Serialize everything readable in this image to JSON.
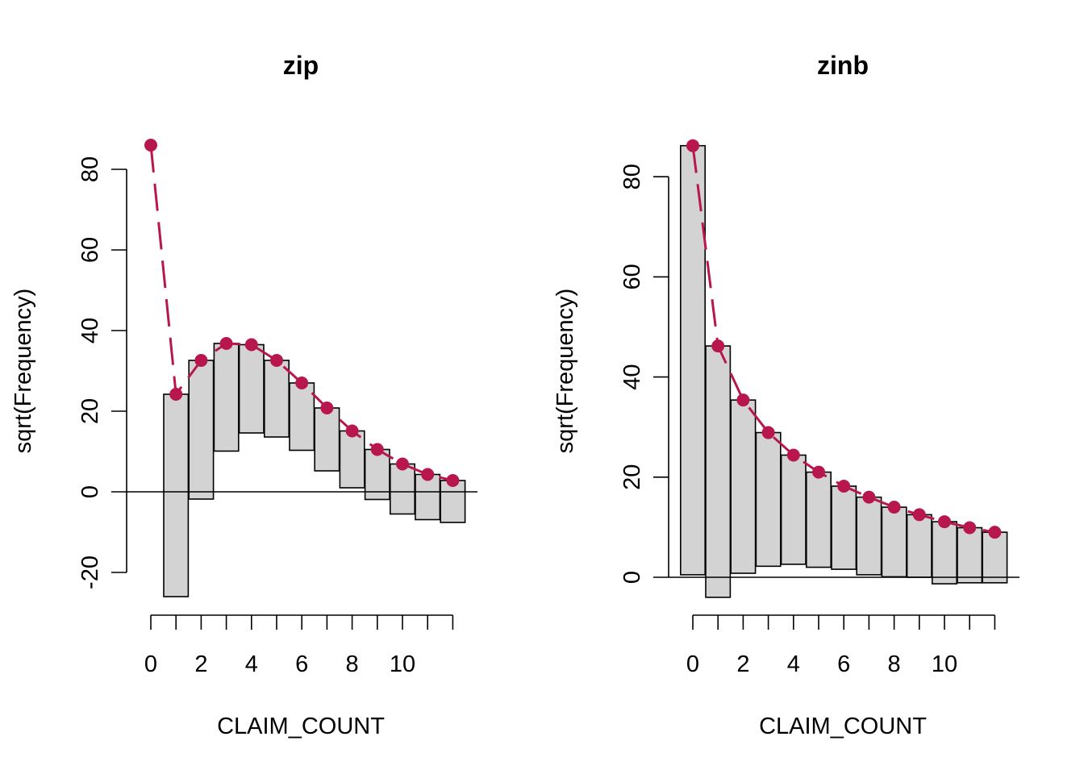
{
  "chart_data": [
    {
      "type": "bar",
      "subtype": "hanging-rootogram",
      "title": "zip",
      "xlabel": "CLAIM_COUNT",
      "ylabel": "sqrt(Frequency)",
      "x": [
        0,
        1,
        2,
        3,
        4,
        5,
        6,
        7,
        8,
        9,
        10,
        11,
        12
      ],
      "x_ticks": [
        0,
        2,
        4,
        6,
        8,
        10
      ],
      "y_ticks": [
        -20,
        0,
        20,
        40,
        60,
        80
      ],
      "ylim": [
        -30,
        86
      ],
      "series": [
        {
          "values": [
            86.0,
            24.2,
            32.6,
            36.8,
            36.5,
            32.6,
            27.0,
            20.8,
            15.1,
            10.5,
            6.9,
            4.3,
            2.8
          ]
        },
        {
          "values": [
            86.0,
            -26.0,
            -1.8,
            10.1,
            14.6,
            13.6,
            10.3,
            5.2,
            1.0,
            -1.9,
            -5.5,
            -6.9,
            -7.6
          ]
        }
      ],
      "line_color": "#b8174e",
      "bar_color": "#d3d3d3",
      "grid": false
    },
    {
      "type": "bar",
      "subtype": "hanging-rootogram",
      "title": "zinb",
      "xlabel": "CLAIM_COUNT",
      "ylabel": "sqrt(Frequency)",
      "x": [
        0,
        1,
        2,
        3,
        4,
        5,
        6,
        7,
        8,
        9,
        10,
        11,
        12
      ],
      "x_ticks": [
        0,
        2,
        4,
        6,
        8,
        10
      ],
      "y_ticks": [
        0,
        20,
        40,
        60,
        80
      ],
      "ylim": [
        -4,
        86
      ],
      "series": [
        {
          "values": [
            86.2,
            46.2,
            35.4,
            28.9,
            24.4,
            21.0,
            18.2,
            16.0,
            14.0,
            12.5,
            11.1,
            9.9,
            9.0
          ]
        },
        {
          "values": [
            0.5,
            -4.0,
            0.8,
            2.2,
            2.6,
            2.0,
            1.6,
            0.5,
            0.1,
            0.0,
            -1.3,
            -1.1,
            -1.1
          ]
        }
      ],
      "line_color": "#b8174e",
      "bar_color": "#d3d3d3",
      "grid": false
    }
  ]
}
